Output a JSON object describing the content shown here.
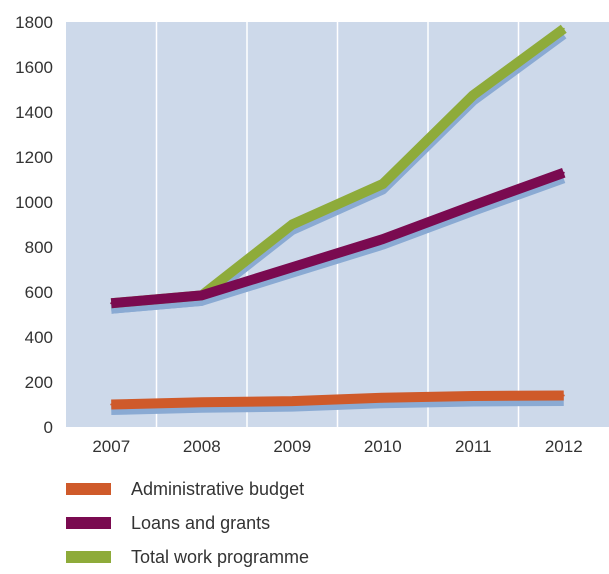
{
  "chart_data": {
    "type": "line",
    "title": "",
    "xlabel": "",
    "ylabel": "",
    "categories": [
      "2007",
      "2008",
      "2009",
      "2010",
      "2011",
      "2012"
    ],
    "ylim": [
      0,
      1800
    ],
    "yticks": [
      0,
      200,
      400,
      600,
      800,
      1000,
      1200,
      1400,
      1600,
      1800
    ],
    "grid": true,
    "legend_position": "bottom",
    "background_color": "#cdd9ea",
    "shadow_color": "#8aaad3",
    "series": [
      {
        "name": "Administrative budget",
        "color": "#cf5a2a",
        "values": [
          100,
          110,
          115,
          130,
          138,
          140
        ]
      },
      {
        "name": "Loans and grants",
        "color": "#7a0a50",
        "values": [
          550,
          585,
          710,
          835,
          985,
          1130
        ]
      },
      {
        "name": "Total work programme",
        "color": "#8eab3a",
        "values": [
          550,
          585,
          900,
          1080,
          1475,
          1770
        ]
      }
    ]
  }
}
